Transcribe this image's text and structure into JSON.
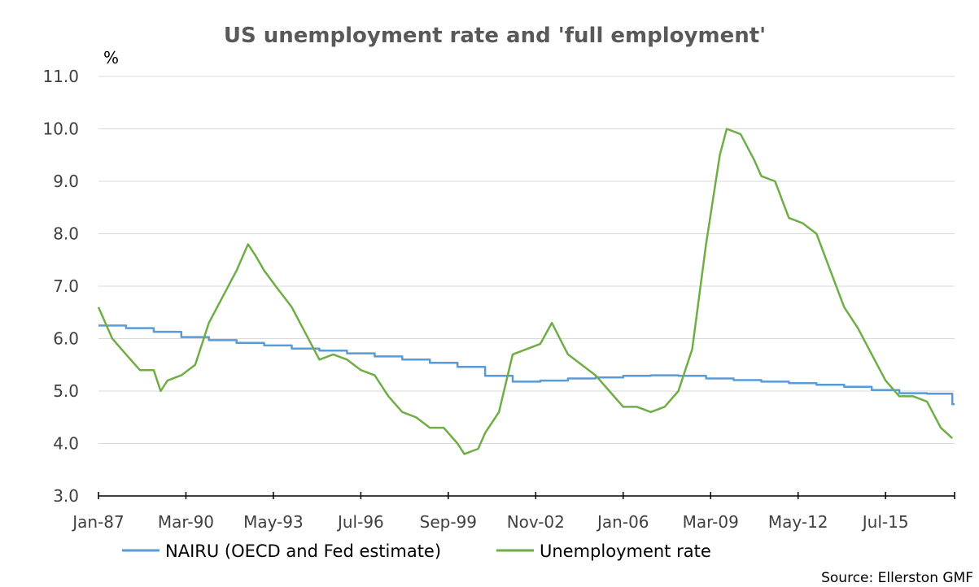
{
  "chart_data": {
    "type": "line",
    "title": "US unemployment rate and 'full employment'",
    "ylabel": "%",
    "xlabel": "",
    "ylim": [
      3.0,
      11.0
    ],
    "yticks": [
      "3.0",
      "4.0",
      "5.0",
      "6.0",
      "7.0",
      "8.0",
      "9.0",
      "10.0",
      "11.0"
    ],
    "xlim": [
      "1987-01",
      "2017-12"
    ],
    "xticks": [
      "Jan-87",
      "Mar-90",
      "May-93",
      "Jul-96",
      "Sep-99",
      "Nov-02",
      "Jan-06",
      "Mar-09",
      "May-12",
      "Jul-15"
    ],
    "grid": "horizontal",
    "legend": "bottom",
    "colors": {
      "nairu": "#5B9BD5",
      "unemployment": "#70AD47"
    },
    "series": [
      {
        "name": "NAIRU (OECD and Fed estimate)",
        "points": [
          [
            "1987-01",
            6.25
          ],
          [
            "1988-01",
            6.2
          ],
          [
            "1989-01",
            6.13
          ],
          [
            "1990-01",
            6.03
          ],
          [
            "1991-01",
            5.97
          ],
          [
            "1992-01",
            5.92
          ],
          [
            "1993-01",
            5.87
          ],
          [
            "1994-01",
            5.81
          ],
          [
            "1995-01",
            5.77
          ],
          [
            "1996-01",
            5.72
          ],
          [
            "1997-01",
            5.66
          ],
          [
            "1998-01",
            5.6
          ],
          [
            "1999-01",
            5.54
          ],
          [
            "2000-01",
            5.46
          ],
          [
            "2001-01",
            5.29
          ],
          [
            "2002-01",
            5.18
          ],
          [
            "2003-01",
            5.2
          ],
          [
            "2004-01",
            5.24
          ],
          [
            "2005-01",
            5.26
          ],
          [
            "2006-01",
            5.29
          ],
          [
            "2007-01",
            5.3
          ],
          [
            "2008-01",
            5.29
          ],
          [
            "2009-01",
            5.24
          ],
          [
            "2010-01",
            5.21
          ],
          [
            "2011-01",
            5.18
          ],
          [
            "2012-01",
            5.15
          ],
          [
            "2013-01",
            5.12
          ],
          [
            "2014-01",
            5.08
          ],
          [
            "2015-01",
            5.02
          ],
          [
            "2016-01",
            4.96
          ],
          [
            "2017-01",
            4.95
          ],
          [
            "2017-12",
            4.75
          ]
        ]
      },
      {
        "name": "Unemployment rate",
        "points": [
          [
            "1987-01",
            6.6
          ],
          [
            "1987-07",
            6.0
          ],
          [
            "1988-01",
            5.7
          ],
          [
            "1988-07",
            5.4
          ],
          [
            "1989-01",
            5.4
          ],
          [
            "1989-04",
            5.0
          ],
          [
            "1989-07",
            5.2
          ],
          [
            "1990-01",
            5.3
          ],
          [
            "1990-07",
            5.5
          ],
          [
            "1990-10",
            5.9
          ],
          [
            "1991-01",
            6.3
          ],
          [
            "1991-07",
            6.8
          ],
          [
            "1992-01",
            7.3
          ],
          [
            "1992-06",
            7.8
          ],
          [
            "1992-09",
            7.6
          ],
          [
            "1993-01",
            7.3
          ],
          [
            "1993-06",
            7.0
          ],
          [
            "1994-01",
            6.6
          ],
          [
            "1994-07",
            6.1
          ],
          [
            "1995-01",
            5.6
          ],
          [
            "1995-07",
            5.7
          ],
          [
            "1996-01",
            5.6
          ],
          [
            "1996-07",
            5.4
          ],
          [
            "1997-01",
            5.3
          ],
          [
            "1997-07",
            4.9
          ],
          [
            "1998-01",
            4.6
          ],
          [
            "1998-07",
            4.5
          ],
          [
            "1999-01",
            4.3
          ],
          [
            "1999-07",
            4.3
          ],
          [
            "2000-01",
            4.0
          ],
          [
            "2000-04",
            3.8
          ],
          [
            "2000-10",
            3.9
          ],
          [
            "2001-01",
            4.2
          ],
          [
            "2001-07",
            4.6
          ],
          [
            "2002-01",
            5.7
          ],
          [
            "2002-07",
            5.8
          ],
          [
            "2003-01",
            5.9
          ],
          [
            "2003-06",
            6.3
          ],
          [
            "2004-01",
            5.7
          ],
          [
            "2004-07",
            5.5
          ],
          [
            "2005-01",
            5.3
          ],
          [
            "2005-07",
            5.0
          ],
          [
            "2006-01",
            4.7
          ],
          [
            "2006-07",
            4.7
          ],
          [
            "2007-01",
            4.6
          ],
          [
            "2007-07",
            4.7
          ],
          [
            "2008-01",
            5.0
          ],
          [
            "2008-07",
            5.8
          ],
          [
            "2009-01",
            7.8
          ],
          [
            "2009-07",
            9.5
          ],
          [
            "2009-10",
            10.0
          ],
          [
            "2010-04",
            9.9
          ],
          [
            "2010-10",
            9.4
          ],
          [
            "2011-01",
            9.1
          ],
          [
            "2011-07",
            9.0
          ],
          [
            "2012-01",
            8.3
          ],
          [
            "2012-07",
            8.2
          ],
          [
            "2013-01",
            8.0
          ],
          [
            "2013-07",
            7.3
          ],
          [
            "2014-01",
            6.6
          ],
          [
            "2014-07",
            6.2
          ],
          [
            "2015-01",
            5.7
          ],
          [
            "2015-07",
            5.2
          ],
          [
            "2016-01",
            4.9
          ],
          [
            "2016-07",
            4.9
          ],
          [
            "2017-01",
            4.8
          ],
          [
            "2017-07",
            4.3
          ],
          [
            "2017-12",
            4.1
          ]
        ]
      }
    ],
    "source": "Source: Ellerston GMF"
  }
}
